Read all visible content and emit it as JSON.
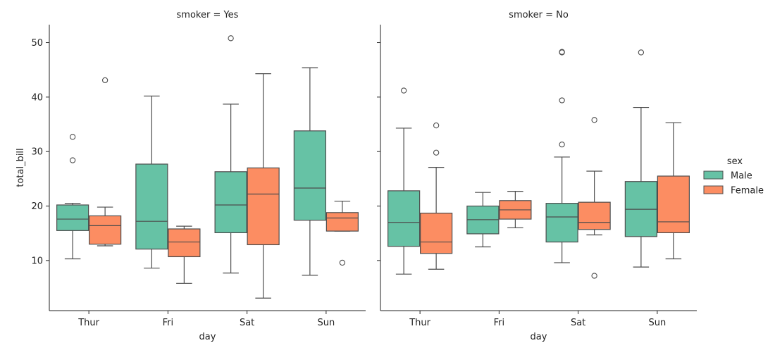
{
  "chart_data": {
    "type": "box",
    "ylabel": "total_bill",
    "xlabel": "day",
    "categories": [
      "Thur",
      "Fri",
      "Sat",
      "Sun"
    ],
    "ylim": [
      0.8,
      53.3
    ],
    "yticks": [
      10,
      20,
      30,
      40,
      50
    ],
    "hue": "sex",
    "legend": {
      "title": "sex",
      "position": "right",
      "entries": [
        {
          "label": "Male",
          "color": "#66c2a5"
        },
        {
          "label": "Female",
          "color": "#fc8d62"
        }
      ]
    },
    "colors": {
      "Male": "#66c2a5",
      "Female": "#fc8d62",
      "line": "#4d4d4d",
      "axis": "#222222"
    },
    "panels": [
      {
        "title": "smoker = Yes",
        "boxes": [
          {
            "day": "Thur",
            "sex": "Male",
            "whislo": 10.3,
            "q1": 15.5,
            "med": 17.6,
            "q3": 20.2,
            "whishi": 20.5,
            "fliers": [
              28.4,
              32.7
            ]
          },
          {
            "day": "Thur",
            "sex": "Female",
            "whislo": 12.7,
            "q1": 13.0,
            "med": 16.4,
            "q3": 18.2,
            "whishi": 19.8,
            "fliers": [
              43.1
            ]
          },
          {
            "day": "Fri",
            "sex": "Male",
            "whislo": 8.6,
            "q1": 12.1,
            "med": 17.2,
            "q3": 27.7,
            "whishi": 40.2,
            "fliers": []
          },
          {
            "day": "Fri",
            "sex": "Female",
            "whislo": 5.8,
            "q1": 10.7,
            "med": 13.4,
            "q3": 15.8,
            "whishi": 16.3,
            "fliers": []
          },
          {
            "day": "Sat",
            "sex": "Male",
            "whislo": 7.7,
            "q1": 15.1,
            "med": 20.2,
            "q3": 26.3,
            "whishi": 38.7,
            "fliers": [
              50.8
            ]
          },
          {
            "day": "Sat",
            "sex": "Female",
            "whislo": 3.1,
            "q1": 12.9,
            "med": 22.2,
            "q3": 27.0,
            "whishi": 44.3,
            "fliers": []
          },
          {
            "day": "Sun",
            "sex": "Male",
            "whislo": 7.3,
            "q1": 17.4,
            "med": 23.3,
            "q3": 33.8,
            "whishi": 45.4,
            "fliers": []
          },
          {
            "day": "Sun",
            "sex": "Female",
            "whislo": 15.4,
            "q1": 15.4,
            "med": 17.8,
            "q3": 18.8,
            "whishi": 20.9,
            "fliers": [
              9.6
            ]
          }
        ]
      },
      {
        "title": "smoker = No",
        "boxes": [
          {
            "day": "Thur",
            "sex": "Male",
            "whislo": 7.5,
            "q1": 12.6,
            "med": 17.0,
            "q3": 22.8,
            "whishi": 34.3,
            "fliers": [
              41.2
            ]
          },
          {
            "day": "Thur",
            "sex": "Female",
            "whislo": 8.4,
            "q1": 11.3,
            "med": 13.4,
            "q3": 18.7,
            "whishi": 27.1,
            "fliers": [
              29.8,
              34.8
            ]
          },
          {
            "day": "Fri",
            "sex": "Male",
            "whislo": 12.5,
            "q1": 14.9,
            "med": 17.5,
            "q3": 20.0,
            "whishi": 22.5,
            "fliers": []
          },
          {
            "day": "Fri",
            "sex": "Female",
            "whislo": 16.0,
            "q1": 17.6,
            "med": 19.3,
            "q3": 21.0,
            "whishi": 22.7,
            "fliers": []
          },
          {
            "day": "Sat",
            "sex": "Male",
            "whislo": 9.6,
            "q1": 13.4,
            "med": 18.0,
            "q3": 20.5,
            "whishi": 29.0,
            "fliers": [
              31.3,
              39.4,
              48.2,
              48.3
            ]
          },
          {
            "day": "Sat",
            "sex": "Female",
            "whislo": 14.7,
            "q1": 15.7,
            "med": 17.0,
            "q3": 20.7,
            "whishi": 26.4,
            "fliers": [
              7.2,
              35.8
            ]
          },
          {
            "day": "Sun",
            "sex": "Male",
            "whislo": 8.8,
            "q1": 14.4,
            "med": 19.4,
            "q3": 24.5,
            "whishi": 38.1,
            "fliers": [
              48.2
            ]
          },
          {
            "day": "Sun",
            "sex": "Female",
            "whislo": 10.3,
            "q1": 15.1,
            "med": 17.1,
            "q3": 25.5,
            "whishi": 35.3,
            "fliers": []
          }
        ]
      }
    ]
  }
}
